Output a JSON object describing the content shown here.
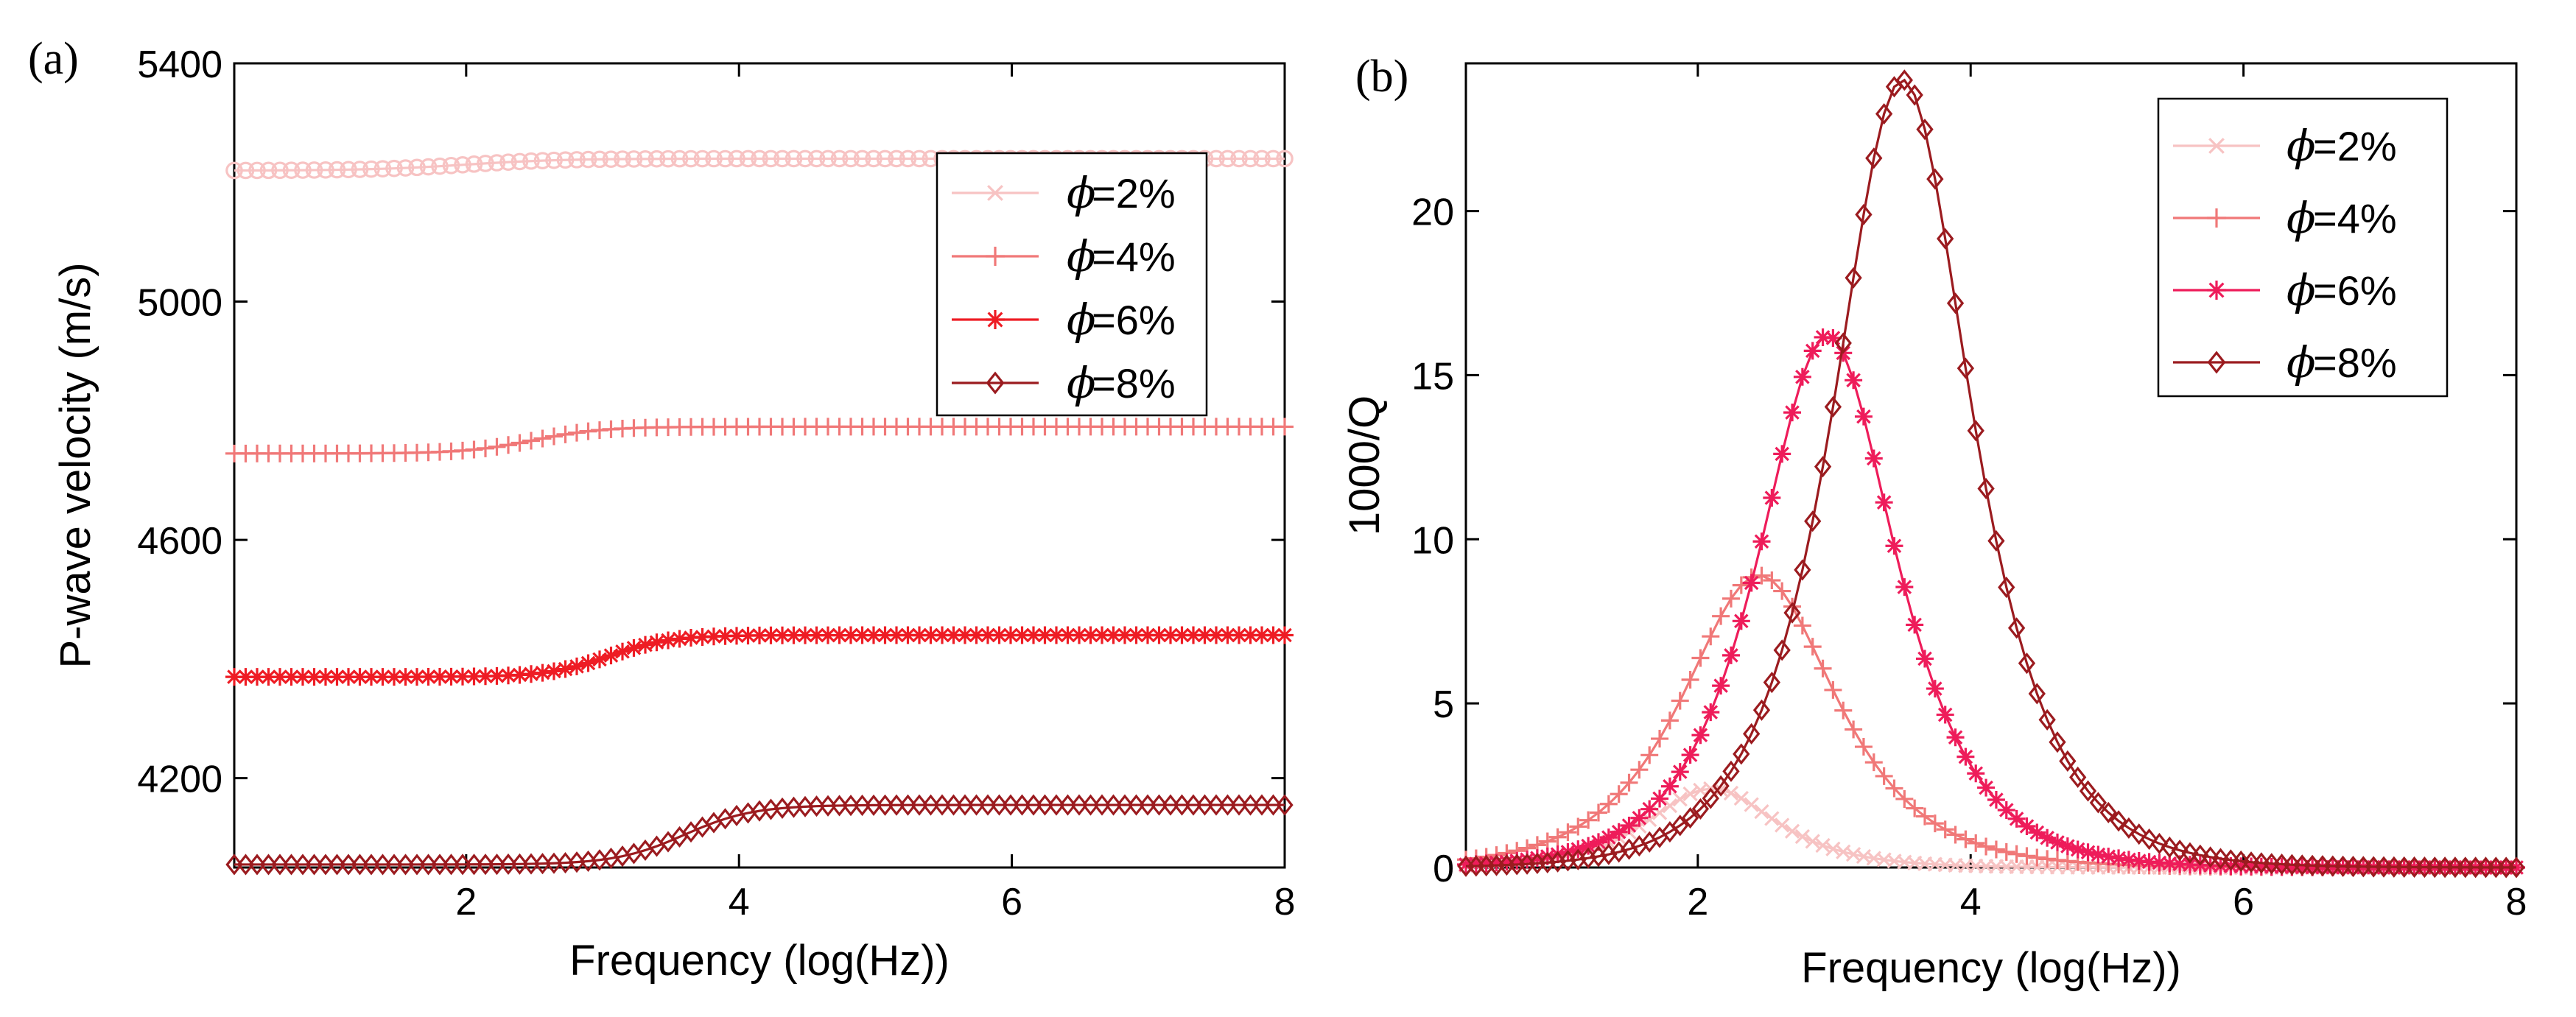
{
  "chart_data": [
    {
      "panel_label": "(a)",
      "type": "line",
      "title": "",
      "xlabel": "Frequency (log(Hz))",
      "ylabel": "P-wave velocity (m/s)",
      "xlim": [
        0.3,
        8
      ],
      "ylim": [
        4050,
        5400
      ],
      "xticks": [
        2,
        4,
        6,
        8
      ],
      "yticks": [
        4200,
        4600,
        5000,
        5400
      ],
      "legend_position": "top-right",
      "series": [
        {
          "name": "=2%",
          "color": "#f7c3c3",
          "marker": "circle",
          "low": 5220,
          "high": 5240,
          "center": 2.0,
          "width": 0.35
        },
        {
          "name": "=4%",
          "color": "#f07878",
          "marker": "plus",
          "low": 4745,
          "high": 4790,
          "center": 2.5,
          "width": 0.25
        },
        {
          "name": "=6%",
          "color": "#ee1c24",
          "marker": "star",
          "low": 4370,
          "high": 4440,
          "center": 3.05,
          "width": 0.22
        },
        {
          "name": "=8%",
          "color": "#9b1b1f",
          "marker": "diamond",
          "low": 4055,
          "high": 4155,
          "center": 3.6,
          "width": 0.25
        }
      ]
    },
    {
      "panel_label": "(b)",
      "type": "line",
      "title": "",
      "xlabel": "Frequency (log(Hz))",
      "ylabel": "1000/Q",
      "xlim": [
        0.3,
        8
      ],
      "ylim": [
        0,
        24.5
      ],
      "xticks": [
        2,
        4,
        6,
        8
      ],
      "yticks": [
        0,
        5,
        10,
        15,
        20
      ],
      "legend_position": "top-right",
      "series": [
        {
          "name": "=2%",
          "color": "#f7c3c3",
          "marker": "x",
          "peak": 2.4,
          "peak_x": 2.1,
          "width": 0.42
        },
        {
          "name": "=4%",
          "color": "#f07878",
          "marker": "plus",
          "peak": 8.9,
          "peak_x": 2.45,
          "width": 0.5
        },
        {
          "name": "=6%",
          "color": "#ee1c5a",
          "marker": "star",
          "peak": 16.2,
          "peak_x": 2.95,
          "width": 0.45
        },
        {
          "name": "=8%",
          "color": "#9b1b1f",
          "marker": "diamond",
          "peak": 24.0,
          "peak_x": 3.5,
          "width": 0.45
        }
      ]
    }
  ],
  "legend_symbol": "ϕ"
}
